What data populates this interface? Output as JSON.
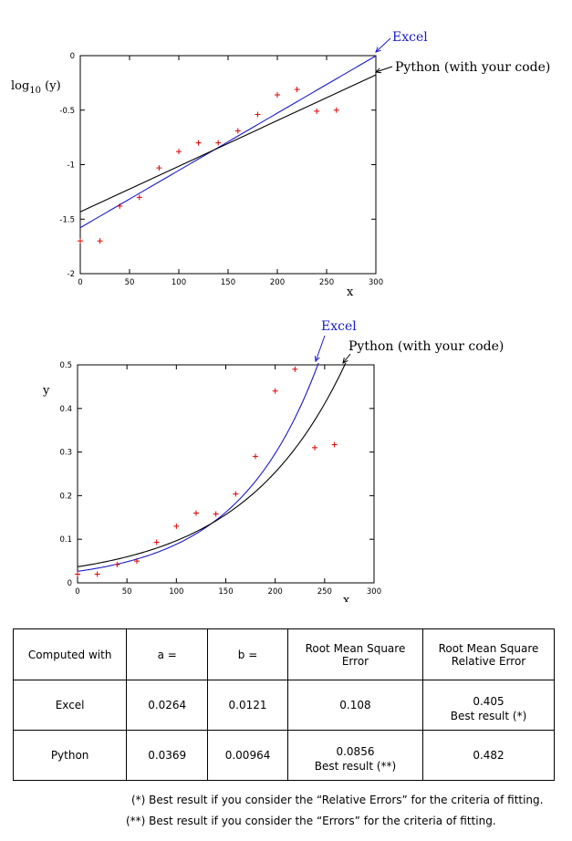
{
  "charts": [
    {
      "ylabel_main": "log",
      "ylabel_sub": "10",
      "ylabel_suffix": " (y)",
      "xlabel": "x",
      "xticks": [
        "0",
        "50",
        "100",
        "150",
        "200",
        "250",
        "300"
      ],
      "yticks": [
        "0",
        "-0.5",
        "-1",
        "-1.5",
        "-2"
      ],
      "excel_label": "Excel",
      "python_label": "Python (with your code)"
    },
    {
      "ylabel": "y",
      "xlabel": "x",
      "xticks": [
        "0",
        "50",
        "100",
        "150",
        "200",
        "250",
        "300"
      ],
      "yticks": [
        "0",
        "0.1",
        "0.2",
        "0.3",
        "0.4",
        "0.5"
      ],
      "excel_label": "Excel",
      "python_label": "Python (with your code)"
    }
  ],
  "chart_data": [
    {
      "type": "scatter",
      "xlabel": "x",
      "ylabel": "log10 (y)",
      "xlim": [
        0,
        300
      ],
      "ylim": [
        -2,
        0
      ],
      "points": {
        "x": [
          0,
          20,
          40,
          60,
          80,
          100,
          120,
          140,
          160,
          180,
          200,
          220,
          240,
          260
        ],
        "y": [
          -1.7,
          -1.7,
          -1.38,
          -1.3,
          -1.03,
          -0.88,
          -0.8,
          -0.8,
          -0.69,
          -0.54,
          -0.36,
          -0.31,
          -0.51,
          -0.5
        ]
      },
      "lines": [
        {
          "name": "Excel",
          "a": 0.0264,
          "b": 0.0121
        },
        {
          "name": "Python (with your code)",
          "a": 0.0369,
          "b": 0.00964
        }
      ],
      "colors": {
        "points": "#e00000",
        "excel": "#1a1acc",
        "python": "#000000"
      }
    },
    {
      "type": "scatter",
      "xlabel": "x",
      "ylabel": "y",
      "xlim": [
        0,
        300
      ],
      "ylim": [
        0,
        0.5
      ],
      "points": {
        "x": [
          0,
          20,
          40,
          60,
          80,
          100,
          120,
          140,
          160,
          180,
          200,
          220,
          240,
          260
        ],
        "y": [
          0.02,
          0.02,
          0.042,
          0.05,
          0.093,
          0.13,
          0.16,
          0.158,
          0.204,
          0.29,
          0.44,
          0.49,
          0.31,
          0.317
        ]
      },
      "lines": [
        {
          "name": "Excel",
          "a": 0.0264,
          "b": 0.0121
        },
        {
          "name": "Python (with your code)",
          "a": 0.0369,
          "b": 0.00964
        }
      ],
      "colors": {
        "points": "#e00000",
        "excel": "#1a1acc",
        "python": "#000000"
      }
    }
  ],
  "table": {
    "headers": [
      "Computed with",
      "a =",
      "b =",
      "Root Mean Square Error",
      "Root Mean Square Relative Error"
    ],
    "rows": [
      {
        "name": "Excel",
        "a": "0.0264",
        "b": "0.0121",
        "rmse": "0.108",
        "rmsre": "0.405",
        "rmse_note": "",
        "rmsre_note": "Best result  (*)"
      },
      {
        "name": "Python",
        "a": "0.0369",
        "b": "0.00964",
        "rmse": "0.0856",
        "rmsre": "0.482",
        "rmse_note": "Best result (**)",
        "rmsre_note": ""
      }
    ]
  },
  "notes": [
    "(*)  Best result if you consider the “Relative Errors”  for the criteria of fitting.",
    "(**) Best result if you consider the “Errors” for the criteria of fitting."
  ]
}
